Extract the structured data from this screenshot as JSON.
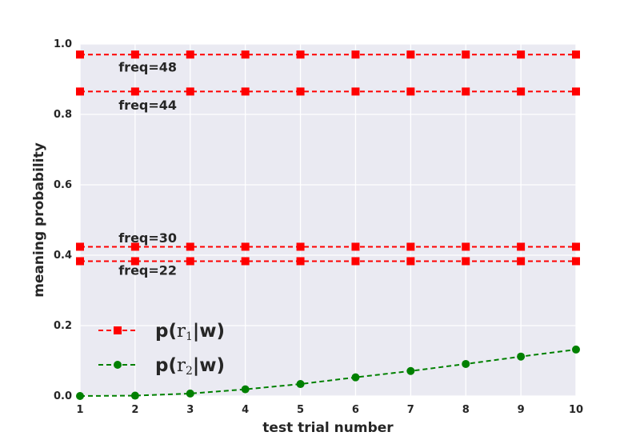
{
  "chart_data": {
    "type": "line",
    "xlabel": "test trial number",
    "ylabel": "meaning probability",
    "xlim": [
      1,
      10
    ],
    "ylim": [
      0.0,
      1.0
    ],
    "x_ticks": [
      "1",
      "2",
      "3",
      "4",
      "5",
      "6",
      "7",
      "8",
      "9",
      "10"
    ],
    "y_ticks": [
      "0.0",
      "0.2",
      "0.4",
      "0.6",
      "0.8",
      "1.0"
    ],
    "grid": true,
    "legend_position": "lower-left",
    "x": [
      1,
      2,
      3,
      4,
      5,
      6,
      7,
      8,
      9,
      10
    ],
    "series": [
      {
        "key": "r1_freq48",
        "color": "#ff0000",
        "marker": "square",
        "values": [
          0.97,
          0.97,
          0.97,
          0.97,
          0.97,
          0.97,
          0.97,
          0.97,
          0.97,
          0.97
        ]
      },
      {
        "key": "r1_freq44",
        "color": "#ff0000",
        "marker": "square",
        "values": [
          0.865,
          0.865,
          0.865,
          0.865,
          0.865,
          0.865,
          0.865,
          0.865,
          0.865,
          0.865
        ]
      },
      {
        "key": "r1_freq30",
        "color": "#ff0000",
        "marker": "square",
        "values": [
          0.424,
          0.424,
          0.424,
          0.424,
          0.424,
          0.424,
          0.424,
          0.424,
          0.424,
          0.424
        ]
      },
      {
        "key": "r1_freq22",
        "color": "#ff0000",
        "marker": "square",
        "values": [
          0.383,
          0.383,
          0.383,
          0.383,
          0.383,
          0.383,
          0.383,
          0.383,
          0.383,
          0.383
        ]
      },
      {
        "key": "r2",
        "color": "#008000",
        "marker": "circle",
        "values": [
          0.0,
          0.001,
          0.007,
          0.019,
          0.034,
          0.053,
          0.071,
          0.091,
          0.112,
          0.132
        ]
      }
    ],
    "annotations": [
      {
        "text": "freq=48",
        "x": 1.7,
        "y": 0.935
      },
      {
        "text": "freq=44",
        "x": 1.7,
        "y": 0.827
      },
      {
        "text": "freq=30",
        "x": 1.7,
        "y": 0.45
      },
      {
        "text": "freq=22",
        "x": 1.7,
        "y": 0.358
      }
    ],
    "legend": [
      {
        "series": "r1",
        "prefix": "p(",
        "mid": "r",
        "sub": "1",
        "suffix": "|w)",
        "color": "#ff0000",
        "marker": "square"
      },
      {
        "series": "r2",
        "prefix": "p(",
        "mid": "r",
        "sub": "2",
        "suffix": "|w)",
        "color": "#008000",
        "marker": "circle"
      }
    ]
  }
}
